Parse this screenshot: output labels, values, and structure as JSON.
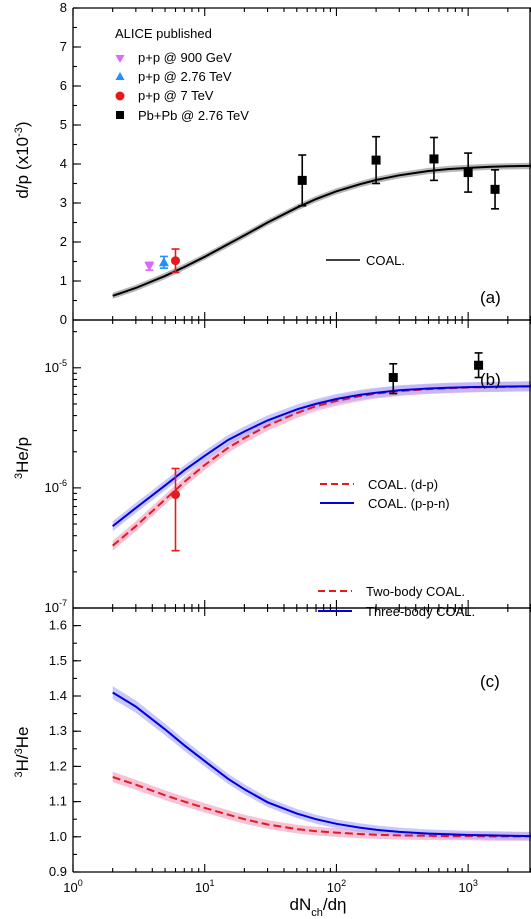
{
  "chart_data": {
    "type": "scatter",
    "xlabel": "dN_ch/dη",
    "xscale": "log",
    "xlim": [
      1,
      3000
    ],
    "x_tick_labels": [
      "10^0",
      "10^1",
      "10^2",
      "10^3"
    ],
    "panels": [
      {
        "id": "a",
        "panel_label": "(a)",
        "ylabel": "d/p",
        "ylabel_unit": "(x10",
        "ylabel_exp": "-3",
        "ylabel_close": ")",
        "yscale": "linear",
        "ylim": [
          0,
          8
        ],
        "y_tick_labels": [
          "0",
          "1",
          "2",
          "3",
          "4",
          "5",
          "6",
          "7",
          "8"
        ],
        "legend_title": "ALICE published",
        "data_series": [
          {
            "name": "p+p @ 900 GeV",
            "color": "#e066ff",
            "marker": "triangle-down",
            "points": [
              {
                "x": 3.8,
                "y": 1.38,
                "err": 0.1
              }
            ]
          },
          {
            "name": "p+p @ 2.76 TeV",
            "color": "#1e90ff",
            "marker": "triangle-up",
            "points": [
              {
                "x": 4.9,
                "y": 1.48,
                "err": 0.15
              }
            ]
          },
          {
            "name": "p+p @ 7 TeV",
            "color": "#e41a1c",
            "marker": "circle",
            "points": [
              {
                "x": 6.0,
                "y": 1.52,
                "err": 0.3
              }
            ]
          },
          {
            "name": "Pb+Pb @ 2.76 TeV",
            "color": "#000000",
            "marker": "square",
            "points": [
              {
                "x": 55,
                "y": 3.58,
                "err": 0.65
              },
              {
                "x": 200,
                "y": 4.1,
                "err": 0.6
              },
              {
                "x": 550,
                "y": 4.13,
                "err": 0.55
              },
              {
                "x": 1000,
                "y": 3.78,
                "err": 0.5
              },
              {
                "x": 1600,
                "y": 3.35,
                "err": 0.5
              }
            ]
          }
        ],
        "model_curves": [
          {
            "name": "COAL.",
            "color": "#000000",
            "dash": "solid",
            "band": "#999999",
            "x": [
              2,
              3,
              5,
              7,
              10,
              15,
              20,
              30,
              50,
              70,
              100,
              150,
              200,
              300,
              500,
              700,
              1000,
              1500,
              2000,
              3000
            ],
            "y": [
              0.62,
              0.82,
              1.13,
              1.36,
              1.62,
              1.94,
              2.17,
              2.5,
              2.88,
              3.1,
              3.3,
              3.48,
              3.59,
              3.71,
              3.82,
              3.87,
              3.9,
              3.93,
              3.94,
              3.95
            ]
          }
        ],
        "legend_position": "top-left",
        "model_legend_position": "center-right"
      },
      {
        "id": "b",
        "panel_label": "(b)",
        "ylabel": "3He/p",
        "ylabel_sup": "3",
        "ylabel_main": "He/p",
        "yscale": "log",
        "ylim": [
          1e-07,
          2.5e-05
        ],
        "y_tick_labels": [
          "10^-7",
          "10^-6",
          "10^-5"
        ],
        "data_series": [
          {
            "name": "p+p @ 7 TeV",
            "color": "#e41a1c",
            "marker": "circle",
            "points": [
              {
                "x": 6.0,
                "y": 8.8e-07,
                "lo": 3e-07,
                "hi": 1.45e-06
              }
            ]
          },
          {
            "name": "Pb+Pb @ 2.76 TeV",
            "color": "#000000",
            "marker": "square",
            "points": [
              {
                "x": 270,
                "y": 8.3e-06,
                "lo": 6.1e-06,
                "hi": 1.08e-05
              },
              {
                "x": 1200,
                "y": 1.05e-05,
                "lo": 8.3e-06,
                "hi": 1.33e-05
              }
            ]
          }
        ],
        "model_curves": [
          {
            "name": "COAL. (d-p)",
            "color": "#e41a1c",
            "dash": "dashed",
            "band": "#f4a6c8",
            "x": [
              2,
              3,
              5,
              7,
              10,
              15,
              20,
              30,
              50,
              70,
              100,
              150,
              200,
              300,
              500,
              700,
              1000,
              1500,
              2000,
              3000
            ],
            "y": [
              3.3e-07,
              4.8e-07,
              8e-07,
              1.12e-06,
              1.55e-06,
              2.15e-06,
              2.6e-06,
              3.3e-06,
              4.2e-06,
              4.8e-06,
              5.3e-06,
              5.8e-06,
              6.1e-06,
              6.4e-06,
              6.65e-06,
              6.75e-06,
              6.85e-06,
              6.92e-06,
              6.95e-06,
              7e-06
            ]
          },
          {
            "name": "COAL. (p-p-n)",
            "color": "#0000dd",
            "dash": "solid",
            "band": "#b0b0ff",
            "x": [
              2,
              3,
              5,
              7,
              10,
              15,
              20,
              30,
              50,
              70,
              100,
              150,
              200,
              300,
              500,
              700,
              1000,
              1500,
              2000,
              3000
            ],
            "y": [
              4.8e-07,
              6.8e-07,
              1.05e-06,
              1.4e-06,
              1.85e-06,
              2.5e-06,
              2.95e-06,
              3.65e-06,
              4.5e-06,
              5e-06,
              5.5e-06,
              5.95e-06,
              6.2e-06,
              6.5e-06,
              6.72e-06,
              6.82e-06,
              6.9e-06,
              6.96e-06,
              6.98e-06,
              7.02e-06
            ]
          }
        ],
        "legend_position": "bottom-right"
      },
      {
        "id": "c",
        "panel_label": "(c)",
        "ylabel": "3H/3He",
        "ylabel_sup1": "3",
        "ylabel_main1": "H/",
        "ylabel_sup2": "3",
        "ylabel_main2": "He",
        "yscale": "linear",
        "ylim": [
          0.9,
          1.65
        ],
        "y_tick_labels": [
          "0.9",
          "1.0",
          "1.1",
          "1.2",
          "1.3",
          "1.4",
          "1.5",
          "1.6"
        ],
        "model_curves": [
          {
            "name": "Two-body COAL.",
            "color": "#e41a1c",
            "dash": "dashed",
            "band": "#f4a6c8",
            "x": [
              2,
              3,
              5,
              7,
              10,
              15,
              20,
              30,
              50,
              70,
              100,
              150,
              200,
              300,
              500,
              700,
              1000,
              1500,
              2000,
              3000
            ],
            "y": [
              1.17,
              1.148,
              1.118,
              1.1,
              1.082,
              1.063,
              1.05,
              1.035,
              1.022,
              1.016,
              1.012,
              1.008,
              1.006,
              1.004,
              1.003,
              1.002,
              1.002,
              1.001,
              1.001,
              1.001
            ]
          },
          {
            "name": "Three-body COAL.",
            "color": "#0000dd",
            "dash": "solid",
            "band": "#b0b0ff",
            "x": [
              2,
              3,
              5,
              7,
              10,
              15,
              20,
              30,
              50,
              70,
              100,
              150,
              200,
              300,
              500,
              700,
              1000,
              1500,
              2000,
              3000
            ],
            "y": [
              1.41,
              1.37,
              1.305,
              1.26,
              1.215,
              1.165,
              1.135,
              1.098,
              1.066,
              1.05,
              1.037,
              1.026,
              1.02,
              1.014,
              1.009,
              1.007,
              1.005,
              1.004,
              1.003,
              1.002
            ]
          }
        ],
        "legend_position": "top-right"
      }
    ]
  }
}
